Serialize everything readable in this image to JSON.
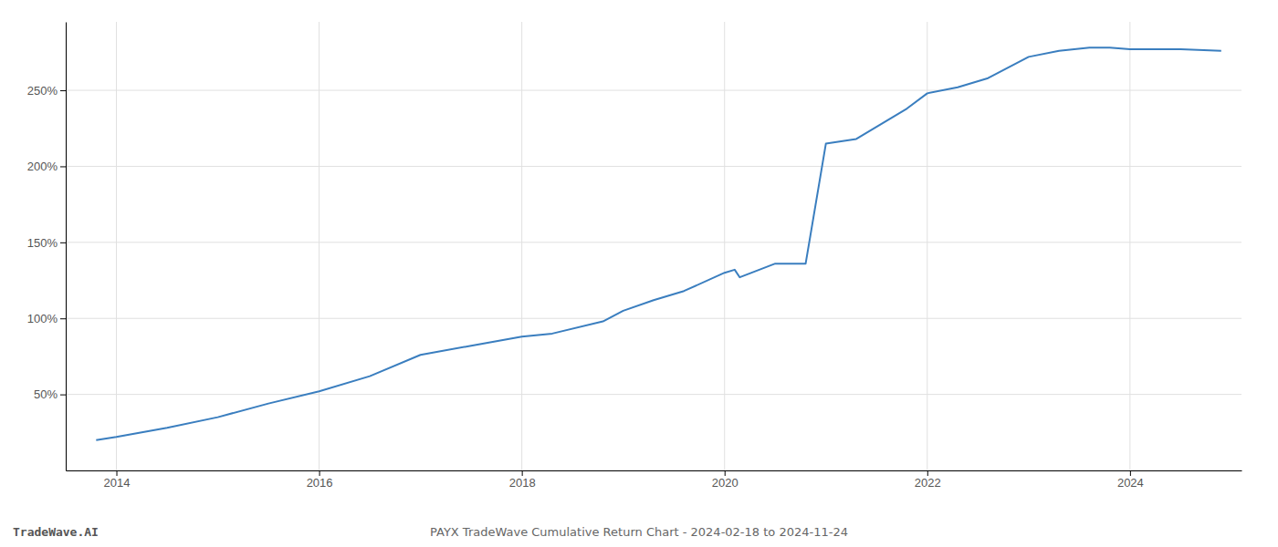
{
  "chart_data": {
    "type": "line",
    "title": "PAYX TradeWave Cumulative Return Chart - 2024-02-18 to 2024-11-24",
    "annotations": [
      "TradeWave.AI"
    ],
    "x": [
      2013.8,
      2014.0,
      2014.5,
      2015.0,
      2015.5,
      2016.0,
      2016.5,
      2017.0,
      2017.5,
      2018.0,
      2018.3,
      2018.8,
      2019.0,
      2019.3,
      2019.6,
      2020.0,
      2020.1,
      2020.15,
      2020.5,
      2020.8,
      2021.0,
      2021.3,
      2021.8,
      2022.0,
      2022.3,
      2022.6,
      2023.0,
      2023.3,
      2023.6,
      2023.8,
      2024.0,
      2024.5,
      2024.9
    ],
    "values": [
      20,
      22,
      28,
      35,
      44,
      52,
      62,
      76,
      82,
      88,
      90,
      98,
      105,
      112,
      118,
      130,
      132,
      127,
      136,
      136,
      215,
      218,
      238,
      248,
      252,
      258,
      272,
      276,
      278,
      278,
      277,
      277,
      276
    ],
    "color": "#3a7ebf",
    "xlim": [
      2013.5,
      2025.1
    ],
    "ylim": [
      0,
      295
    ],
    "xticks": [
      2014,
      2016,
      2018,
      2020,
      2022,
      2024
    ],
    "yticks": [
      {
        "value": 50,
        "label": "50%"
      },
      {
        "value": 100,
        "label": "100%"
      },
      {
        "value": 150,
        "label": "150%"
      },
      {
        "value": 200,
        "label": "200%"
      },
      {
        "value": 250,
        "label": "250%"
      }
    ],
    "grid": true
  }
}
